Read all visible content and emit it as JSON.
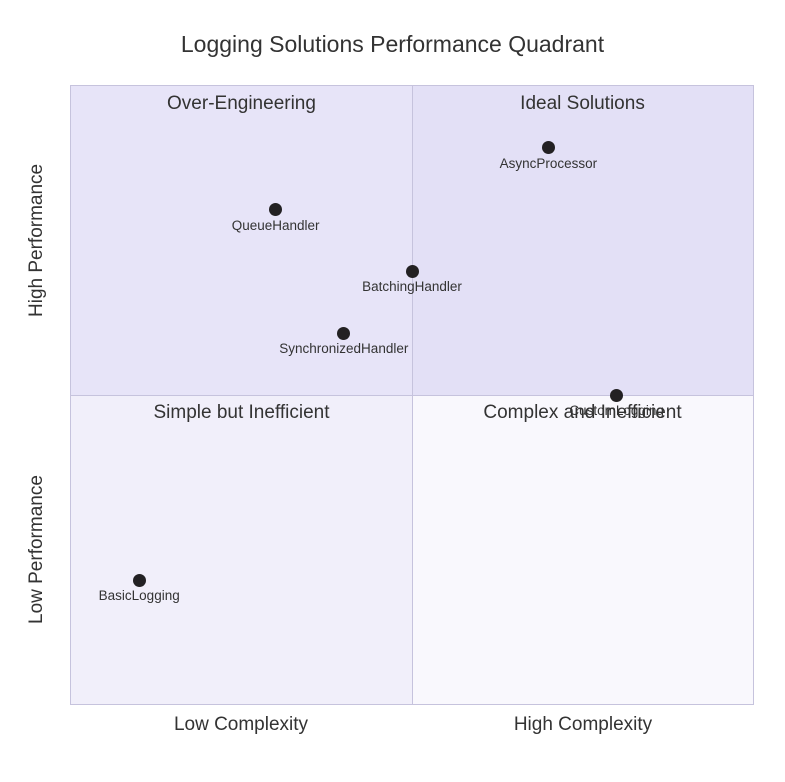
{
  "title": "Logging Solutions Performance Quadrant",
  "colors": {
    "quadrant_tl": "#e7e4f8",
    "quadrant_tr": "#e3e0f6",
    "quadrant_bl": "#f1effa",
    "quadrant_br": "#f9f8fd",
    "border": "#c6c3dd",
    "point": "#232123",
    "text": "#333333"
  },
  "chart_data": {
    "type": "scatter",
    "title": "Logging Solutions Performance Quadrant",
    "x_axis": {
      "left_label": "Low Complexity",
      "right_label": "High Complexity"
    },
    "y_axis": {
      "top_label": "High Performance",
      "bottom_label": "Low Performance"
    },
    "quadrants": {
      "top_left": "Over-Engineering",
      "top_right": "Ideal Solutions",
      "bottom_left": "Simple but Inefficient",
      "bottom_right": "Complex and Inefficient"
    },
    "xlim": [
      0,
      1
    ],
    "ylim": [
      0,
      1
    ],
    "grid": false,
    "legend": false,
    "points": [
      {
        "label": "AsyncProcessor",
        "x": 0.7,
        "y": 0.9
      },
      {
        "label": "QueueHandler",
        "x": 0.3,
        "y": 0.8
      },
      {
        "label": "BatchingHandler",
        "x": 0.5,
        "y": 0.7
      },
      {
        "label": "SynchronizedHandler",
        "x": 0.4,
        "y": 0.6
      },
      {
        "label": "CustomLogging",
        "x": 0.8,
        "y": 0.5
      },
      {
        "label": "BasicLogging",
        "x": 0.1,
        "y": 0.2
      }
    ]
  }
}
